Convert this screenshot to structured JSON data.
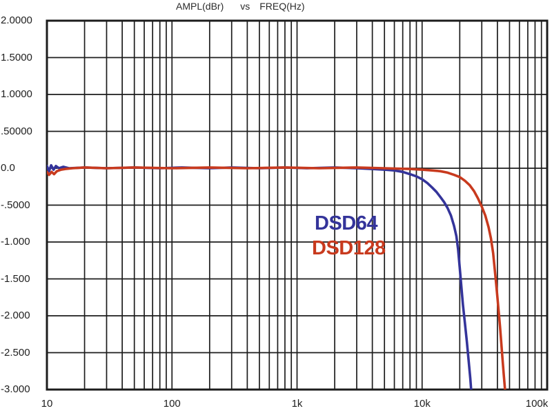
{
  "title": {
    "ampl": "AMPL(dBr)",
    "vs": "vs",
    "freq": "FREQ(Hz)"
  },
  "chart_data": {
    "type": "line",
    "title": "AMPL(dBr) vs FREQ(Hz)",
    "xlabel": "FREQ(Hz)",
    "ylabel": "AMPL(dBr)",
    "x_scale": "log",
    "xlim": [
      10,
      100000
    ],
    "ylim": [
      -3.0,
      2.0
    ],
    "y_step": 0.5,
    "grid": true,
    "grid_color": "#1c1c1c",
    "border_color": "#1c1c1c",
    "background": "#ffffff",
    "legend_position": "center-right",
    "x_ticks": [
      {
        "value": 10,
        "label": "10"
      },
      {
        "value": 100,
        "label": "100"
      },
      {
        "value": 1000,
        "label": "1k"
      },
      {
        "value": 10000,
        "label": "10k"
      },
      {
        "value": 100000,
        "label": "100k"
      }
    ],
    "y_ticks": [
      {
        "value": 2.0,
        "label": "2.0000"
      },
      {
        "value": 1.5,
        "label": "1.5000"
      },
      {
        "value": 1.0,
        "label": "1.0000"
      },
      {
        "value": 0.5,
        "label": ".50000"
      },
      {
        "value": 0.0,
        "label": "0.0"
      },
      {
        "value": -0.5,
        "label": "-.5000"
      },
      {
        "value": -1.0,
        "label": "-1.000"
      },
      {
        "value": -1.5,
        "label": "-1.500"
      },
      {
        "value": -2.0,
        "label": "-2.000"
      },
      {
        "value": -2.5,
        "label": "-2.500"
      },
      {
        "value": -3.0,
        "label": "-3.000"
      }
    ],
    "series": [
      {
        "name": "DSD64",
        "color": "#34349A",
        "minus3db_hz": 24800,
        "points": [
          [
            10,
            0.03
          ],
          [
            10.4,
            -0.04
          ],
          [
            10.8,
            0.04
          ],
          [
            11.3,
            -0.02
          ],
          [
            11.8,
            0.03
          ],
          [
            12.5,
            0.0
          ],
          [
            13.5,
            0.02
          ],
          [
            15,
            0.0
          ],
          [
            20,
            0.01
          ],
          [
            30,
            0.0
          ],
          [
            50,
            0.01
          ],
          [
            80,
            0.0
          ],
          [
            120,
            0.01
          ],
          [
            200,
            0.0
          ],
          [
            300,
            0.01
          ],
          [
            500,
            0.0
          ],
          [
            800,
            0.01
          ],
          [
            1200,
            0.0
          ],
          [
            2000,
            0.01
          ],
          [
            3000,
            0.0
          ],
          [
            4000,
            -0.01
          ],
          [
            5000,
            -0.02
          ],
          [
            6000,
            -0.03
          ],
          [
            7000,
            -0.05
          ],
          [
            8000,
            -0.08
          ],
          [
            9000,
            -0.11
          ],
          [
            10000,
            -0.15
          ],
          [
            11000,
            -0.2
          ],
          [
            12000,
            -0.26
          ],
          [
            13000,
            -0.32
          ],
          [
            14000,
            -0.39
          ],
          [
            15000,
            -0.46
          ],
          [
            16000,
            -0.54
          ],
          [
            17000,
            -0.64
          ],
          [
            18000,
            -0.78
          ],
          [
            18800,
            -0.92
          ],
          [
            19400,
            -1.1
          ],
          [
            20000,
            -1.35
          ],
          [
            20600,
            -1.6
          ],
          [
            21200,
            -1.85
          ],
          [
            22000,
            -2.1
          ],
          [
            22800,
            -2.35
          ],
          [
            23600,
            -2.62
          ],
          [
            24300,
            -2.85
          ],
          [
            24800,
            -3.05
          ],
          [
            25000,
            -3.3
          ]
        ]
      },
      {
        "name": "DSD128",
        "color": "#C83A1E",
        "minus3db_hz": 46000,
        "points": [
          [
            10,
            -0.05
          ],
          [
            10.4,
            -0.09
          ],
          [
            10.9,
            -0.05
          ],
          [
            11.4,
            -0.08
          ],
          [
            12,
            -0.04
          ],
          [
            13,
            -0.02
          ],
          [
            14,
            -0.01
          ],
          [
            16,
            0.0
          ],
          [
            20,
            0.01
          ],
          [
            30,
            0.0
          ],
          [
            50,
            0.01
          ],
          [
            100,
            0.0
          ],
          [
            200,
            0.01
          ],
          [
            400,
            0.0
          ],
          [
            800,
            0.01
          ],
          [
            1500,
            0.0
          ],
          [
            3000,
            0.01
          ],
          [
            5000,
            0.0
          ],
          [
            8000,
            -0.01
          ],
          [
            10000,
            -0.02
          ],
          [
            12000,
            -0.03
          ],
          [
            14000,
            -0.04
          ],
          [
            16000,
            -0.06
          ],
          [
            18000,
            -0.09
          ],
          [
            20000,
            -0.12
          ],
          [
            22000,
            -0.17
          ],
          [
            24000,
            -0.23
          ],
          [
            26000,
            -0.31
          ],
          [
            28000,
            -0.41
          ],
          [
            30000,
            -0.52
          ],
          [
            32000,
            -0.64
          ],
          [
            34000,
            -0.8
          ],
          [
            35500,
            -0.95
          ],
          [
            37000,
            -1.15
          ],
          [
            38000,
            -1.35
          ],
          [
            39000,
            -1.55
          ],
          [
            40000,
            -1.75
          ],
          [
            41000,
            -1.95
          ],
          [
            42000,
            -2.15
          ],
          [
            43000,
            -2.38
          ],
          [
            44000,
            -2.6
          ],
          [
            45000,
            -2.8
          ],
          [
            46000,
            -3.0
          ],
          [
            46500,
            -3.3
          ]
        ]
      }
    ]
  }
}
